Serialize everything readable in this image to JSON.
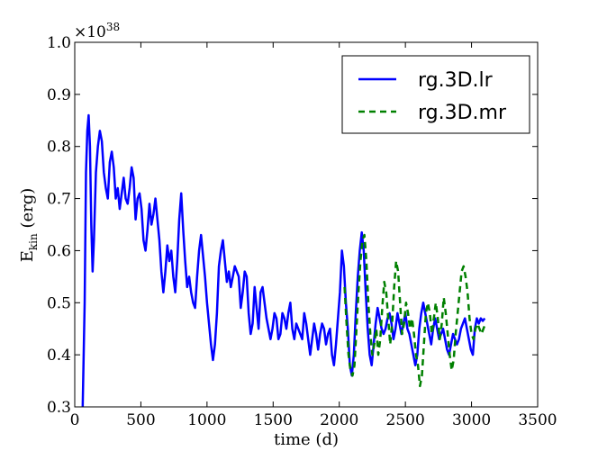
{
  "chart_data": {
    "type": "line",
    "xlabel": "time (d)",
    "ylabel": "E",
    "ylabel_sub": "kin",
    "ylabel_unit": " (erg)",
    "y_multiplier": "×10",
    "y_multiplier_exp": "38",
    "xlim": [
      0,
      3500
    ],
    "ylim": [
      0.3,
      1.0
    ],
    "x_ticks": [
      0,
      500,
      1000,
      1500,
      2000,
      2500,
      3000,
      3500
    ],
    "y_ticks": [
      0.3,
      0.4,
      0.5,
      0.6,
      0.7,
      0.8,
      0.9,
      1.0
    ],
    "x_tick_labels": [
      "0",
      "500",
      "1000",
      "1500",
      "2000",
      "2500",
      "3000",
      "3500"
    ],
    "y_tick_labels": [
      "0.3",
      "0.4",
      "0.5",
      "0.6",
      "0.7",
      "0.8",
      "0.9",
      "1.0"
    ],
    "grid": false,
    "legend_position": "top-right",
    "series": [
      {
        "name": "rg.3D.lr",
        "color": "#0000ff",
        "style": "solid",
        "x": [
          60,
          75,
          85,
          95,
          105,
          115,
          125,
          135,
          145,
          160,
          175,
          190,
          205,
          220,
          235,
          250,
          265,
          280,
          295,
          310,
          325,
          340,
          355,
          370,
          385,
          400,
          415,
          430,
          445,
          460,
          475,
          490,
          505,
          520,
          535,
          550,
          565,
          580,
          595,
          610,
          625,
          640,
          655,
          670,
          685,
          700,
          715,
          730,
          745,
          760,
          775,
          790,
          805,
          820,
          835,
          850,
          865,
          880,
          895,
          910,
          925,
          940,
          955,
          970,
          985,
          1000,
          1015,
          1030,
          1045,
          1060,
          1075,
          1090,
          1105,
          1120,
          1135,
          1150,
          1165,
          1180,
          1195,
          1210,
          1225,
          1240,
          1255,
          1270,
          1285,
          1300,
          1315,
          1330,
          1345,
          1360,
          1375,
          1390,
          1405,
          1420,
          1435,
          1450,
          1465,
          1480,
          1495,
          1510,
          1525,
          1540,
          1555,
          1570,
          1585,
          1600,
          1615,
          1630,
          1645,
          1660,
          1675,
          1690,
          1705,
          1720,
          1735,
          1750,
          1765,
          1780,
          1795,
          1810,
          1825,
          1840,
          1855,
          1870,
          1885,
          1900,
          1915,
          1930,
          1945,
          1960,
          1975,
          1990,
          2005,
          2020,
          2035,
          2050,
          2065,
          2080,
          2095,
          2110,
          2125,
          2140,
          2155,
          2170,
          2185,
          2200,
          2215,
          2230,
          2245,
          2260,
          2275,
          2290,
          2305,
          2320,
          2335,
          2350,
          2365,
          2380,
          2395,
          2410,
          2425,
          2440,
          2455,
          2470,
          2485,
          2500,
          2515,
          2530,
          2545,
          2560,
          2575,
          2590,
          2605,
          2620,
          2635,
          2650,
          2665,
          2680,
          2695,
          2710,
          2725,
          2740,
          2755,
          2770,
          2785,
          2800,
          2815,
          2830,
          2845,
          2860,
          2875,
          2890,
          2905,
          2920,
          2935,
          2950,
          2965,
          2980,
          2995,
          3010,
          3025,
          3040,
          3055,
          3070,
          3085,
          3100
        ],
        "y": [
          0.3,
          0.5,
          0.75,
          0.83,
          0.86,
          0.8,
          0.65,
          0.56,
          0.62,
          0.75,
          0.8,
          0.83,
          0.81,
          0.75,
          0.72,
          0.7,
          0.77,
          0.79,
          0.76,
          0.7,
          0.72,
          0.68,
          0.71,
          0.74,
          0.7,
          0.69,
          0.72,
          0.76,
          0.74,
          0.66,
          0.7,
          0.71,
          0.68,
          0.62,
          0.6,
          0.64,
          0.69,
          0.65,
          0.67,
          0.7,
          0.66,
          0.62,
          0.56,
          0.52,
          0.56,
          0.61,
          0.58,
          0.6,
          0.55,
          0.52,
          0.58,
          0.66,
          0.71,
          0.64,
          0.58,
          0.53,
          0.55,
          0.52,
          0.5,
          0.49,
          0.55,
          0.6,
          0.63,
          0.59,
          0.55,
          0.5,
          0.46,
          0.42,
          0.39,
          0.42,
          0.48,
          0.57,
          0.6,
          0.62,
          0.58,
          0.54,
          0.56,
          0.53,
          0.55,
          0.57,
          0.56,
          0.55,
          0.49,
          0.52,
          0.56,
          0.55,
          0.48,
          0.44,
          0.46,
          0.53,
          0.49,
          0.45,
          0.52,
          0.53,
          0.5,
          0.47,
          0.45,
          0.43,
          0.45,
          0.48,
          0.47,
          0.43,
          0.44,
          0.48,
          0.47,
          0.45,
          0.48,
          0.5,
          0.45,
          0.43,
          0.46,
          0.45,
          0.44,
          0.43,
          0.48,
          0.46,
          0.43,
          0.4,
          0.43,
          0.46,
          0.44,
          0.41,
          0.44,
          0.46,
          0.45,
          0.42,
          0.44,
          0.45,
          0.4,
          0.38,
          0.42,
          0.47,
          0.52,
          0.6,
          0.57,
          0.5,
          0.45,
          0.38,
          0.36,
          0.4,
          0.48,
          0.55,
          0.6,
          0.635,
          0.6,
          0.52,
          0.45,
          0.4,
          0.38,
          0.42,
          0.46,
          0.49,
          0.47,
          0.45,
          0.44,
          0.45,
          0.47,
          0.48,
          0.46,
          0.43,
          0.45,
          0.48,
          0.46,
          0.44,
          0.46,
          0.48,
          0.45,
          0.44,
          0.42,
          0.4,
          0.38,
          0.4,
          0.45,
          0.48,
          0.5,
          0.48,
          0.46,
          0.44,
          0.42,
          0.45,
          0.47,
          0.45,
          0.43,
          0.44,
          0.45,
          0.43,
          0.41,
          0.4,
          0.42,
          0.44,
          0.43,
          0.42,
          0.43,
          0.45,
          0.46,
          0.47,
          0.45,
          0.43,
          0.41,
          0.4,
          0.45,
          0.47,
          0.46,
          0.47,
          0.465,
          0.47
        ]
      },
      {
        "name": "rg.3D.mr",
        "color": "#008000",
        "style": "dashed",
        "x": [
          2040,
          2055,
          2070,
          2085,
          2100,
          2115,
          2130,
          2145,
          2160,
          2175,
          2190,
          2205,
          2220,
          2235,
          2250,
          2265,
          2280,
          2295,
          2310,
          2325,
          2340,
          2355,
          2370,
          2385,
          2400,
          2415,
          2430,
          2445,
          2460,
          2475,
          2490,
          2505,
          2520,
          2535,
          2550,
          2565,
          2580,
          2595,
          2610,
          2625,
          2640,
          2655,
          2670,
          2685,
          2700,
          2715,
          2730,
          2745,
          2760,
          2775,
          2790,
          2805,
          2820,
          2835,
          2850,
          2865,
          2880,
          2895,
          2910,
          2925,
          2940,
          2955,
          2970,
          2985,
          3000,
          3015,
          3030,
          3045,
          3060,
          3075,
          3090,
          3105
        ],
        "y": [
          0.53,
          0.46,
          0.4,
          0.37,
          0.36,
          0.38,
          0.45,
          0.52,
          0.58,
          0.62,
          0.63,
          0.58,
          0.5,
          0.44,
          0.4,
          0.42,
          0.45,
          0.4,
          0.43,
          0.49,
          0.54,
          0.52,
          0.47,
          0.42,
          0.46,
          0.53,
          0.58,
          0.56,
          0.5,
          0.44,
          0.46,
          0.5,
          0.48,
          0.45,
          0.47,
          0.44,
          0.4,
          0.38,
          0.34,
          0.36,
          0.42,
          0.48,
          0.5,
          0.48,
          0.44,
          0.47,
          0.5,
          0.47,
          0.43,
          0.46,
          0.51,
          0.48,
          0.44,
          0.4,
          0.37,
          0.39,
          0.44,
          0.48,
          0.52,
          0.56,
          0.57,
          0.55,
          0.52,
          0.47,
          0.44,
          0.43,
          0.45,
          0.46,
          0.45,
          0.44,
          0.45,
          0.46
        ]
      }
    ]
  }
}
